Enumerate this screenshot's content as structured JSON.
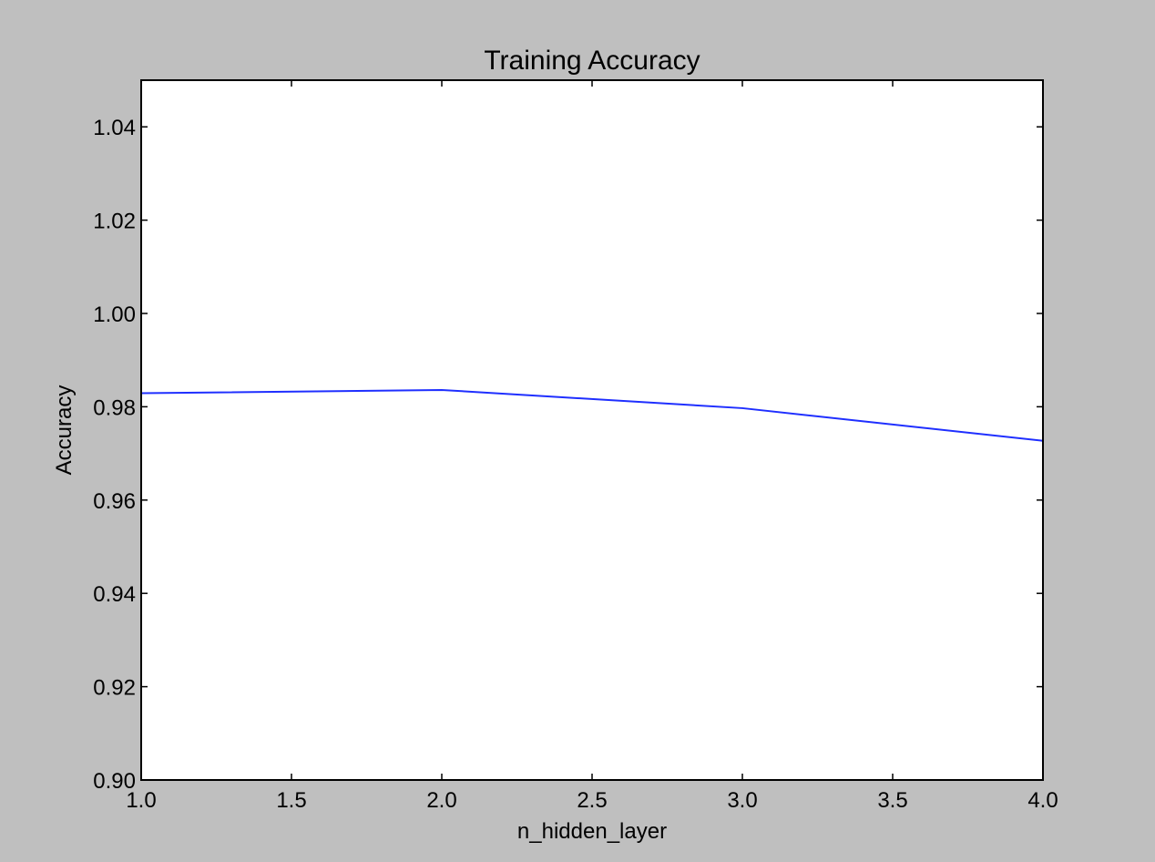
{
  "chart_data": {
    "type": "line",
    "title": "Training Accuracy",
    "xlabel": "n_hidden_layer",
    "ylabel": "Accuracy",
    "xlim": [
      1.0,
      4.0
    ],
    "ylim": [
      0.9,
      1.05
    ],
    "xticks": [
      "1.0",
      "1.5",
      "2.0",
      "2.5",
      "3.0",
      "3.5",
      "4.0"
    ],
    "yticks": [
      "0.90",
      "0.92",
      "0.94",
      "0.96",
      "0.98",
      "1.00",
      "1.02",
      "1.04"
    ],
    "grid": false,
    "legend": false,
    "x": [
      1,
      2,
      3,
      4
    ],
    "series": [
      {
        "values": [
          0.9829,
          0.9836,
          0.9797,
          0.9727
        ],
        "color": "#1f2fff"
      }
    ],
    "colors": {
      "background": "#bfbfbf",
      "plot_area": "#ffffff",
      "axes": "#000000"
    }
  }
}
